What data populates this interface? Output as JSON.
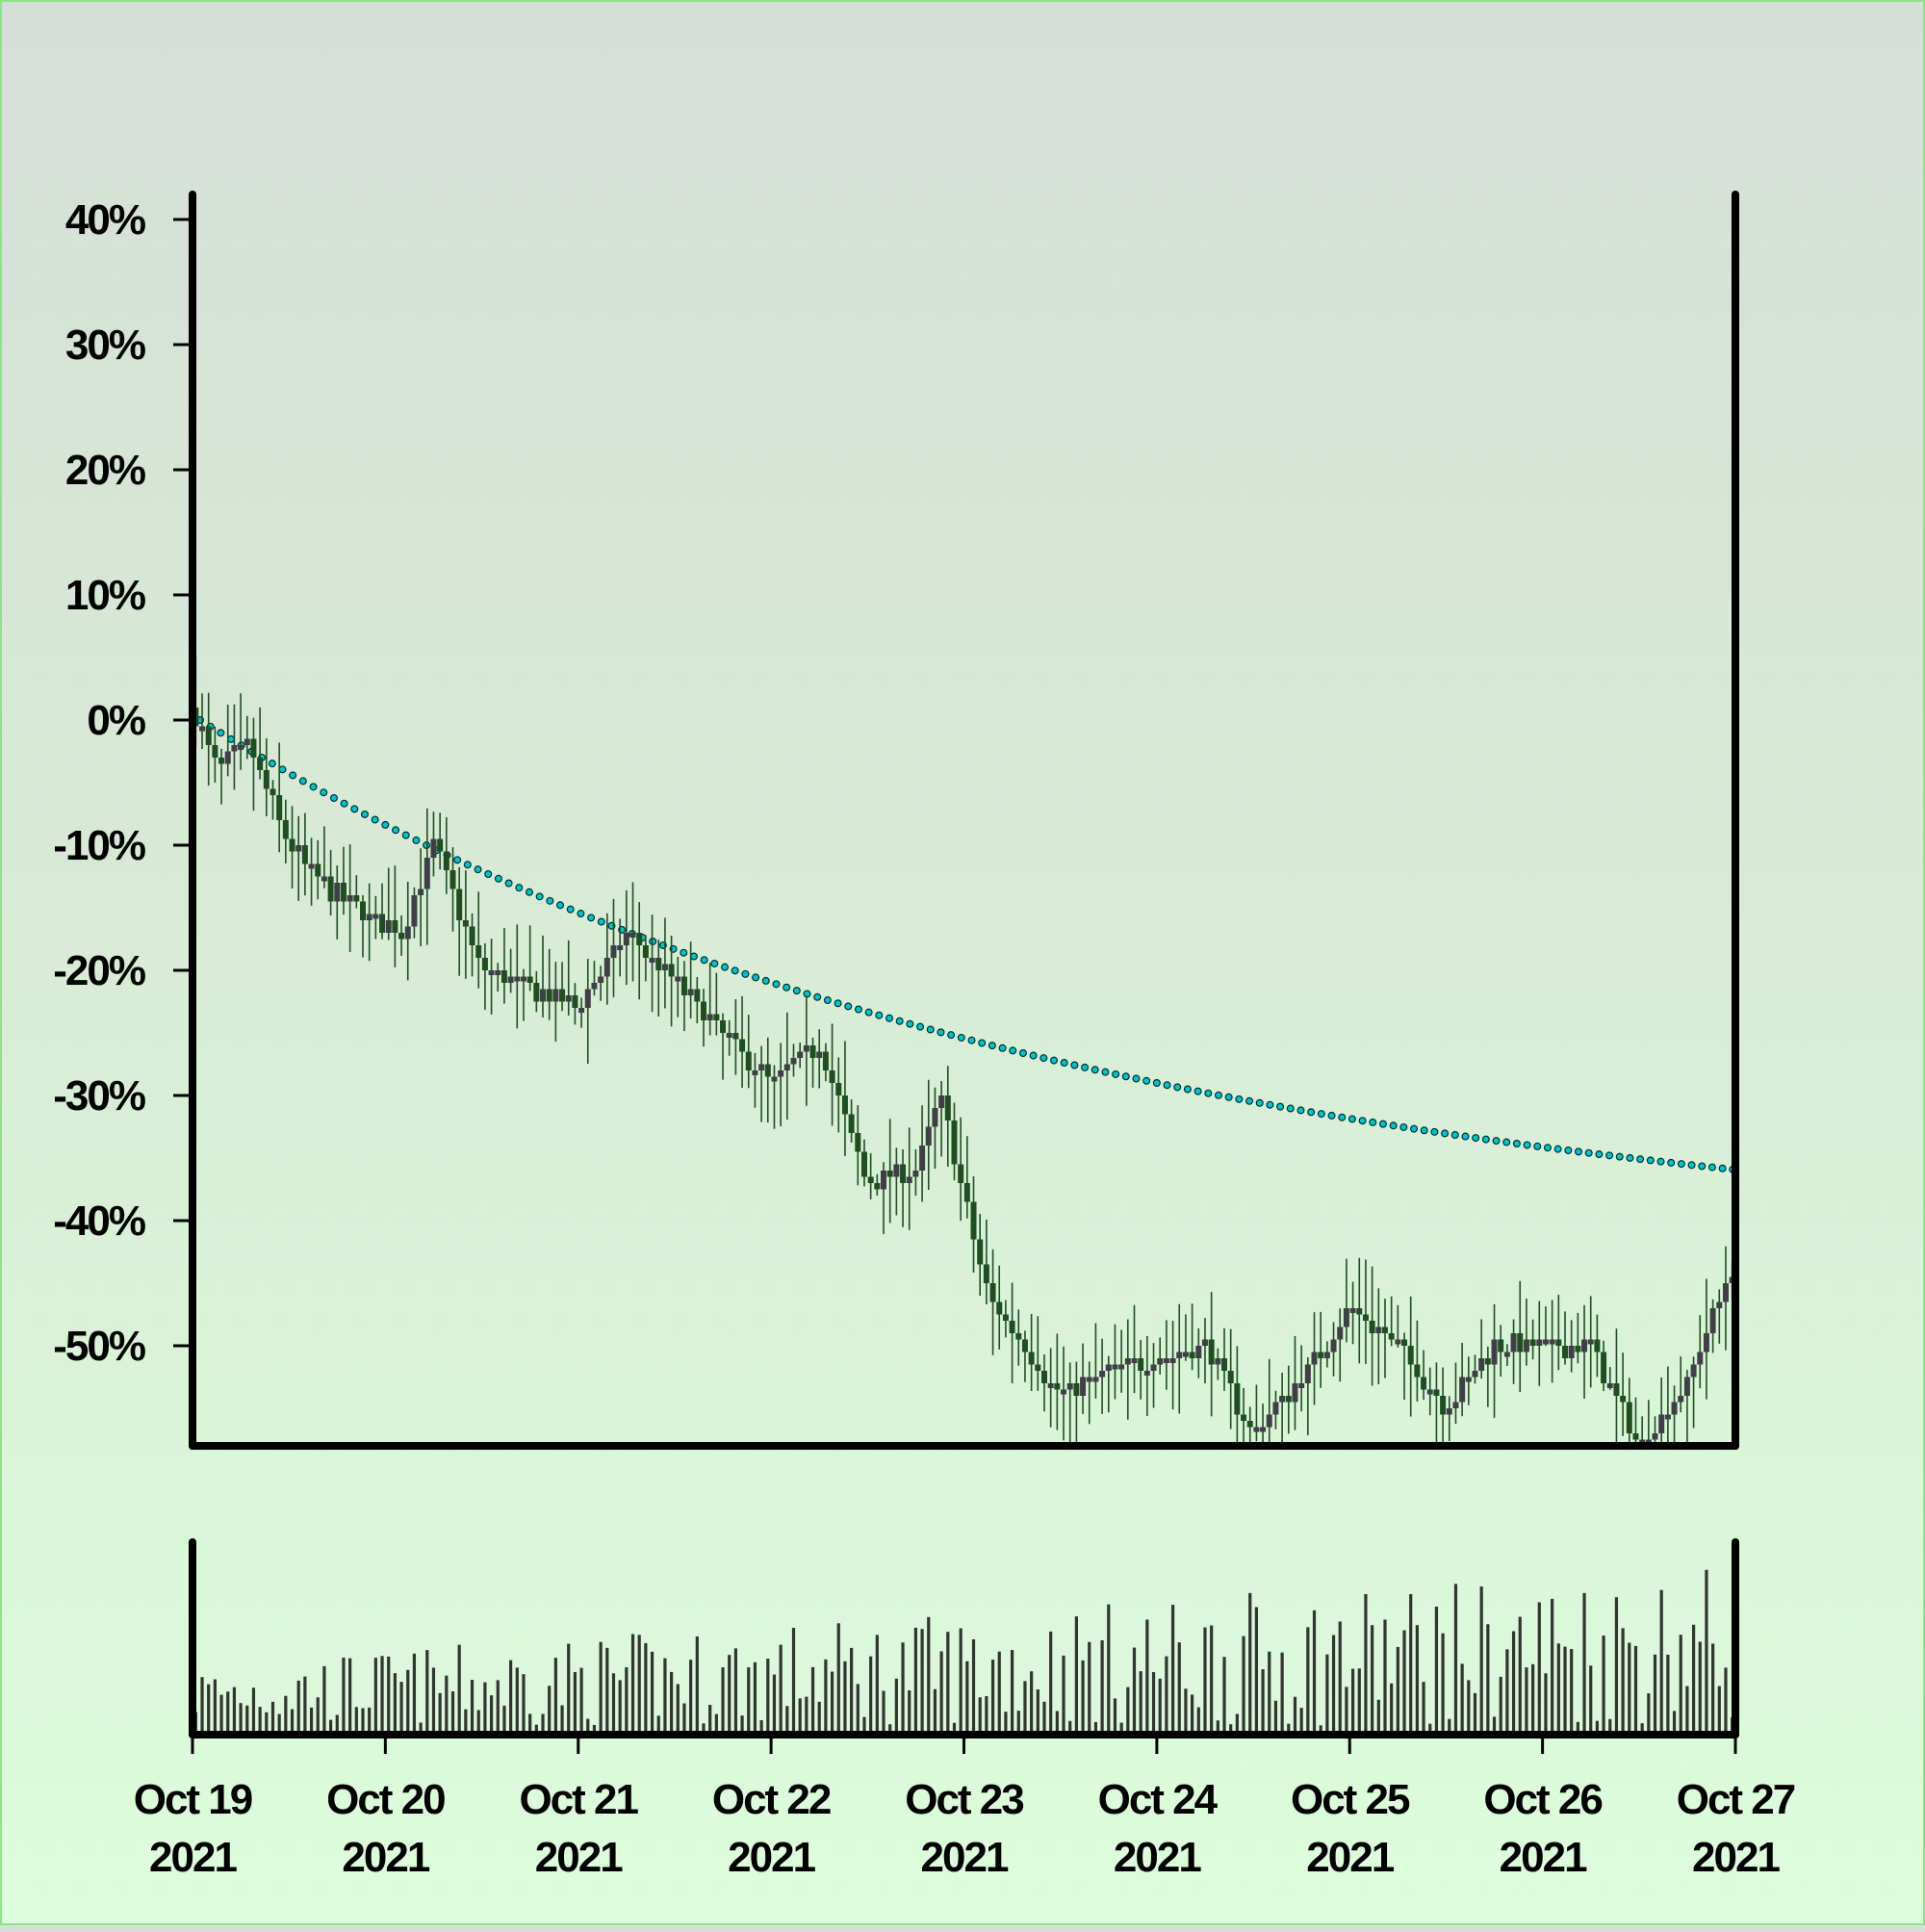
{
  "chart_data": {
    "type": "candlestick",
    "y_format": "percent",
    "ylim": [
      -58,
      42
    ],
    "yticks": [
      40,
      30,
      20,
      10,
      0,
      -10,
      -20,
      -30,
      -40,
      -50
    ],
    "ytick_labels": [
      "40%",
      "30%",
      "20%",
      "10%",
      "0%",
      "-10%",
      "-20%",
      "-30%",
      "-40%",
      "-50%"
    ],
    "x_range": [
      "2021-10-19",
      "2021-10-27"
    ],
    "xtick_labels": [
      [
        "Oct 19",
        "2021"
      ],
      [
        "Oct 20",
        "2021"
      ],
      [
        "Oct 21",
        "2021"
      ],
      [
        "Oct 22",
        "2021"
      ],
      [
        "Oct 23",
        "2021"
      ],
      [
        "Oct 24",
        "2021"
      ],
      [
        "Oct 25",
        "2021"
      ],
      [
        "Oct 26",
        "2021"
      ],
      [
        "Oct 27",
        "2021"
      ]
    ],
    "candle_count": 240,
    "close_path_pct": [
      [
        "2021-10-19T00:00",
        1
      ],
      [
        "2021-10-19T03:00",
        -4
      ],
      [
        "2021-10-19T07:00",
        -2
      ],
      [
        "2021-10-19T12:00",
        -10
      ],
      [
        "2021-10-19T16:00",
        -13
      ],
      [
        "2021-10-19T20:00",
        -15
      ],
      [
        "2021-10-20T02:00",
        -17
      ],
      [
        "2021-10-20T06:00",
        -10
      ],
      [
        "2021-10-20T12:00",
        -20
      ],
      [
        "2021-10-21T00:00",
        -23
      ],
      [
        "2021-10-21T06:00",
        -17
      ],
      [
        "2021-10-21T12:00",
        -21
      ],
      [
        "2021-10-21T18:00",
        -25
      ],
      [
        "2021-10-22T00:00",
        -29
      ],
      [
        "2021-10-22T06:00",
        -26
      ],
      [
        "2021-10-22T12:00",
        -37
      ],
      [
        "2021-10-22T18:00",
        -36
      ],
      [
        "2021-10-22T21:00",
        -30
      ],
      [
        "2021-10-23T03:00",
        -46
      ],
      [
        "2021-10-23T12:00",
        -54
      ],
      [
        "2021-10-23T18:00",
        -52
      ],
      [
        "2021-10-24T06:00",
        -50
      ],
      [
        "2021-10-24T12:00",
        -57
      ],
      [
        "2021-10-24T20:00",
        -51
      ],
      [
        "2021-10-25T00:00",
        -47
      ],
      [
        "2021-10-25T06:00",
        -50
      ],
      [
        "2021-10-25T12:00",
        -55
      ],
      [
        "2021-10-25T18:00",
        -50
      ],
      [
        "2021-10-26T06:00",
        -50
      ],
      [
        "2021-10-26T12:00",
        -58
      ],
      [
        "2021-10-26T18:00",
        -53
      ],
      [
        "2021-10-27T00:00",
        -43
      ]
    ],
    "trend_line": {
      "style": "dotted",
      "start": [
        "2021-10-19T00:00",
        0
      ],
      "end": [
        "2021-10-27T00:00",
        -36
      ]
    },
    "volume_panel": true,
    "colors": {
      "candle_up": "#3f3f46",
      "candle_down": "#1f4f20",
      "wick": "#1f4f20",
      "trend": "#00c6cc",
      "axis": "#000000",
      "volume": "#333333",
      "bg_top": "#d6ded8",
      "bg_bottom": "#dcfddb"
    },
    "grid": false
  }
}
